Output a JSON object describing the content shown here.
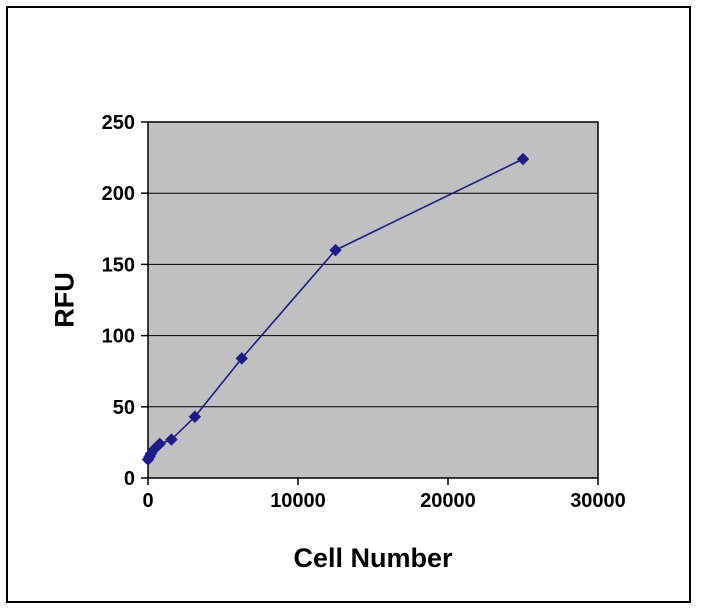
{
  "chart_data": {
    "type": "line",
    "title": "",
    "xlabel": "Cell Number",
    "ylabel": "RFU",
    "x": [
      0,
      98,
      195,
      391,
      781,
      1563,
      3125,
      6250,
      12500,
      25000
    ],
    "y": [
      13,
      15,
      17,
      20,
      24,
      27,
      43,
      84,
      160,
      224
    ],
    "xlim": [
      0,
      30000
    ],
    "ylim": [
      0,
      250
    ],
    "xticks": [
      0,
      10000,
      20000,
      30000
    ],
    "yticks": [
      0,
      50,
      100,
      150,
      200,
      250
    ],
    "grid": "horizontal",
    "legend": "none",
    "marker": "diamond",
    "colors": {
      "line": "#1c1c8a",
      "marker": "#1c1c8a",
      "plot_bg": "#c0c0c0",
      "grid": "#000000",
      "axis": "#000000",
      "text": "#000000",
      "page_bg": "#ffffff",
      "frame": "#000000"
    }
  }
}
